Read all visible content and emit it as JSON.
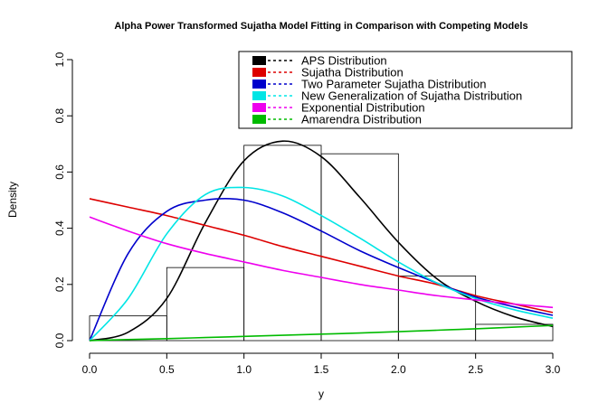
{
  "chart_data": {
    "type": "line",
    "title": "Alpha Power Transformed Sujatha Model Fitting in Comparison with Competing Models",
    "xlabel": "y",
    "ylabel": "Density",
    "xlim": [
      0,
      3
    ],
    "ylim": [
      0,
      1
    ],
    "x_ticks": [
      "0.0",
      "0.5",
      "1.0",
      "1.5",
      "2.0",
      "2.5",
      "3.0"
    ],
    "y_ticks": [
      "0.0",
      "0.2",
      "0.4",
      "0.6",
      "0.8",
      "1.0"
    ],
    "grid": false,
    "legend_position": "top-right",
    "histogram": {
      "bins": [
        [
          0,
          0.5
        ],
        [
          0.5,
          1.0
        ],
        [
          1.0,
          1.5
        ],
        [
          1.5,
          2.0
        ],
        [
          2.0,
          2.5
        ],
        [
          2.5,
          3.0
        ]
      ],
      "density": [
        0.088,
        0.26,
        0.695,
        0.665,
        0.23,
        0.058
      ]
    },
    "x": [
      0,
      0.25,
      0.5,
      0.75,
      1.0,
      1.25,
      1.5,
      1.75,
      2.0,
      2.25,
      2.5,
      2.75,
      3.0
    ],
    "series": [
      {
        "name": "APS Distribution",
        "color": "#000000",
        "values": [
          0.0,
          0.03,
          0.15,
          0.42,
          0.64,
          0.71,
          0.655,
          0.51,
          0.35,
          0.22,
          0.14,
          0.085,
          0.05
        ]
      },
      {
        "name": "Sujatha Distribution",
        "color": "#dd0000",
        "values": [
          0.505,
          0.475,
          0.445,
          0.41,
          0.375,
          0.335,
          0.3,
          0.265,
          0.23,
          0.2,
          0.16,
          0.13,
          0.1
        ]
      },
      {
        "name": "Two Parameter Sujatha Distribution",
        "color": "#0000cc",
        "values": [
          0.0,
          0.31,
          0.46,
          0.5,
          0.5,
          0.455,
          0.39,
          0.32,
          0.26,
          0.205,
          0.155,
          0.12,
          0.09
        ]
      },
      {
        "name": "New Generalization of Sujatha Distribution",
        "color": "#00e5e5",
        "values": [
          0.0,
          0.15,
          0.38,
          0.52,
          0.545,
          0.515,
          0.445,
          0.365,
          0.28,
          0.205,
          0.15,
          0.11,
          0.08
        ]
      },
      {
        "name": "Exponential Distribution",
        "color": "#ee00ee",
        "values": [
          0.44,
          0.39,
          0.345,
          0.31,
          0.28,
          0.25,
          0.225,
          0.2,
          0.18,
          0.16,
          0.145,
          0.13,
          0.118
        ]
      },
      {
        "name": "Amarendra Distribution",
        "color": "#00bb00",
        "values": [
          0.0,
          0.004,
          0.007,
          0.011,
          0.015,
          0.019,
          0.023,
          0.027,
          0.032,
          0.037,
          0.042,
          0.048,
          0.054
        ]
      }
    ]
  }
}
